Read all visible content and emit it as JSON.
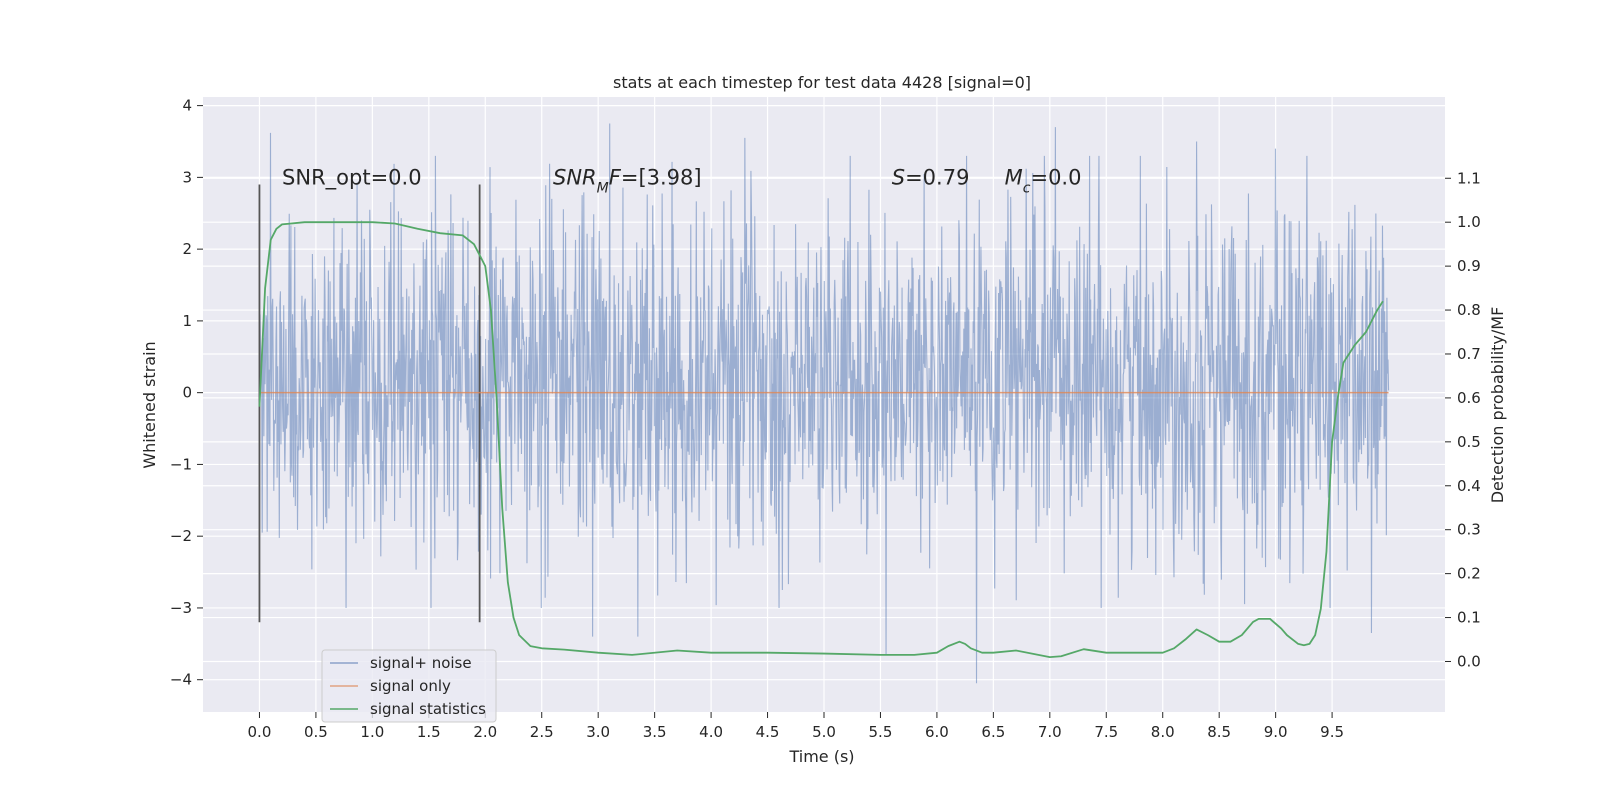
{
  "chart_data": {
    "type": "line",
    "title": "stats at each timestep for test data 4428 [signal=0]",
    "xlabel": "Time (s)",
    "ylabel": "Whitened strain",
    "ylabel_right": "Detection probability/MF",
    "xlim": [
      -0.5,
      10.5
    ],
    "ylim": [
      -4.45,
      4.12
    ],
    "ylim_right": [
      -0.115,
      1.285
    ],
    "x_ticks": [
      "0.0",
      "0.5",
      "1.0",
      "1.5",
      "2.0",
      "2.5",
      "3.0",
      "3.5",
      "4.0",
      "4.5",
      "5.0",
      "5.5",
      "6.0",
      "6.5",
      "7.0",
      "7.5",
      "8.0",
      "8.5",
      "9.0",
      "9.5"
    ],
    "y_ticks": [
      "4",
      "3",
      "2",
      "1",
      "0",
      "−1",
      "−2",
      "−3",
      "−4"
    ],
    "y_ticks_right": [
      "0.0",
      "0.1",
      "0.2",
      "0.3",
      "0.4",
      "0.5",
      "0.6",
      "0.7",
      "0.8",
      "0.9",
      "1.0",
      "1.1"
    ],
    "grid": true,
    "legend_position": "lower-left",
    "annotations": [
      {
        "text": "SNR_opt=0.0",
        "x": 0.2,
        "y": 3.0
      },
      {
        "math": "SNR",
        "sub": "M",
        "math2": "F",
        "rest": "=[3.98]",
        "x": 2.6,
        "y": 3.0
      },
      {
        "math": "S",
        "rest": "=0.79",
        "x": 5.6,
        "y": 3.0
      },
      {
        "math": "M",
        "sub": "c",
        "rest": "=0.0",
        "x": 6.6,
        "y": 3.0
      }
    ],
    "vertical_lines": [
      {
        "x": 0.0,
        "y_range": [
          -3.2,
          2.9
        ]
      },
      {
        "x": 1.95,
        "y_range": [
          -3.2,
          2.9
        ]
      }
    ],
    "series": [
      {
        "name": "signal+ noise",
        "color": "#4c72b0",
        "opacity": 0.5,
        "x_range": [
          0.0,
          10.0
        ],
        "n_samples": 2048,
        "envelope_typical": [
          -1.8,
          2.2
        ],
        "extremes": [
          {
            "x": 0.1,
            "y": 3.62
          },
          {
            "x": 3.1,
            "y": 3.75
          },
          {
            "x": 4.3,
            "y": 3.55
          },
          {
            "x": 7.05,
            "y": 3.7
          },
          {
            "x": 8.3,
            "y": 3.5
          },
          {
            "x": 9.0,
            "y": 3.4
          },
          {
            "x": 5.55,
            "y": -3.65
          },
          {
            "x": 6.35,
            "y": -4.05
          },
          {
            "x": 3.35,
            "y": -3.4
          },
          {
            "x": 2.95,
            "y": -3.4
          },
          {
            "x": 9.85,
            "y": -3.35
          }
        ]
      },
      {
        "name": "signal only",
        "color": "#dd8452",
        "x": [
          0.0,
          10.0
        ],
        "values": [
          0.0,
          0.0
        ]
      },
      {
        "name": "signal statistics",
        "color": "#55a868",
        "axis": "right",
        "x": [
          0.0,
          0.05,
          0.1,
          0.15,
          0.2,
          0.4,
          0.8,
          1.0,
          1.2,
          1.4,
          1.6,
          1.8,
          1.9,
          2.0,
          2.05,
          2.1,
          2.15,
          2.2,
          2.25,
          2.3,
          2.4,
          2.5,
          2.7,
          3.0,
          3.3,
          3.7,
          4.0,
          4.5,
          5.0,
          5.5,
          5.8,
          6.0,
          6.1,
          6.2,
          6.25,
          6.3,
          6.4,
          6.5,
          6.7,
          7.0,
          7.1,
          7.3,
          7.5,
          8.0,
          8.1,
          8.2,
          8.3,
          8.4,
          8.5,
          8.6,
          8.7,
          8.8,
          8.85,
          8.95,
          9.05,
          9.1,
          9.2,
          9.25,
          9.3,
          9.35,
          9.4,
          9.45,
          9.5,
          9.55,
          9.6,
          9.7,
          9.8,
          9.9,
          9.95
        ],
        "values": [
          0.58,
          0.85,
          0.96,
          0.985,
          0.995,
          1.0,
          1.0,
          1.0,
          0.997,
          0.985,
          0.975,
          0.97,
          0.95,
          0.9,
          0.8,
          0.6,
          0.35,
          0.18,
          0.1,
          0.06,
          0.035,
          0.03,
          0.027,
          0.02,
          0.015,
          0.025,
          0.02,
          0.02,
          0.018,
          0.015,
          0.015,
          0.02,
          0.035,
          0.045,
          0.04,
          0.03,
          0.02,
          0.02,
          0.025,
          0.01,
          0.012,
          0.028,
          0.02,
          0.02,
          0.03,
          0.05,
          0.073,
          0.06,
          0.045,
          0.045,
          0.06,
          0.09,
          0.097,
          0.097,
          0.075,
          0.06,
          0.04,
          0.037,
          0.04,
          0.06,
          0.12,
          0.25,
          0.5,
          0.6,
          0.68,
          0.72,
          0.75,
          0.8,
          0.82
        ]
      }
    ]
  }
}
